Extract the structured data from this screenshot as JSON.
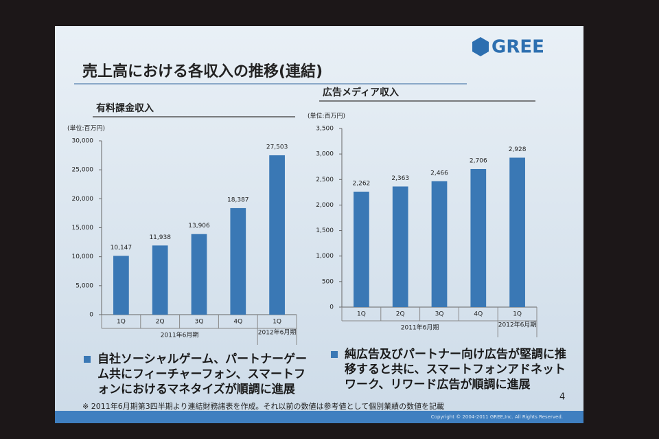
{
  "slide_title": "売上高における各収入の推移(連結)",
  "logo": "GREE",
  "chart_data": [
    {
      "type": "bar",
      "title": "有料課金収入",
      "unit_label": "(単位:百万円)",
      "categories": [
        "1Q",
        "2Q",
        "3Q",
        "4Q",
        "1Q"
      ],
      "groups": [
        "2011年6月期",
        "2012年6月期"
      ],
      "values": [
        10147,
        11938,
        13906,
        18387,
        27503
      ],
      "value_labels": [
        "10,147",
        "11,938",
        "13,906",
        "18,387",
        "27,503"
      ],
      "color": "#3a78b5",
      "ylim": [
        0,
        30000
      ],
      "yticks": [
        0,
        {
          "value": 5000,
          "label": "5,000"
        },
        {
          "value": 10000,
          "label": "10,000"
        },
        {
          "value": 15000,
          "label": "15,000"
        },
        {
          "value": 20000,
          "label": "20,000"
        },
        {
          "value": 25000,
          "label": "25,000"
        },
        {
          "value": 30000,
          "label": "30,000"
        }
      ]
    },
    {
      "type": "bar",
      "title": "広告メディア収入",
      "unit_label": "(単位:百万円)",
      "categories": [
        "1Q",
        "2Q",
        "3Q",
        "4Q",
        "1Q"
      ],
      "groups": [
        "2011年6月期",
        "2012年6月期"
      ],
      "values": [
        2262,
        2363,
        2466,
        2706,
        2928
      ],
      "value_labels": [
        "2,262",
        "2,363",
        "2,466",
        "2,706",
        "2,928"
      ],
      "color": "#3a78b5",
      "ylim": [
        0,
        3500
      ],
      "yticks": [
        0,
        {
          "value": 500,
          "label": "500"
        },
        {
          "value": 1000,
          "label": "1,000"
        },
        {
          "value": 1500,
          "label": "1,500"
        },
        {
          "value": 2000,
          "label": "2,000"
        },
        {
          "value": 2500,
          "label": "2,500"
        },
        {
          "value": 3000,
          "label": "3,000"
        },
        {
          "value": 3500,
          "label": "3,500"
        }
      ]
    }
  ],
  "bullets": [
    "自社ソーシャルゲーム、パートナーゲーム共にフィーチャーフォン、スマートフォンにおけるマネタイズが順調に進展",
    "純広告及びパートナー向け広告が堅調に推移すると共に、スマートフォンアドネットワーク、リワード広告が順調に進展"
  ],
  "footnote": "※ 2011年6月期第3四半期より連結財務諸表を作成。それ以前の数値は参考値として個別業績の数値を記載",
  "page_number": "4",
  "copyright": "Copyright © 2004-2011 GREE,Inc. All Rights Reserved."
}
